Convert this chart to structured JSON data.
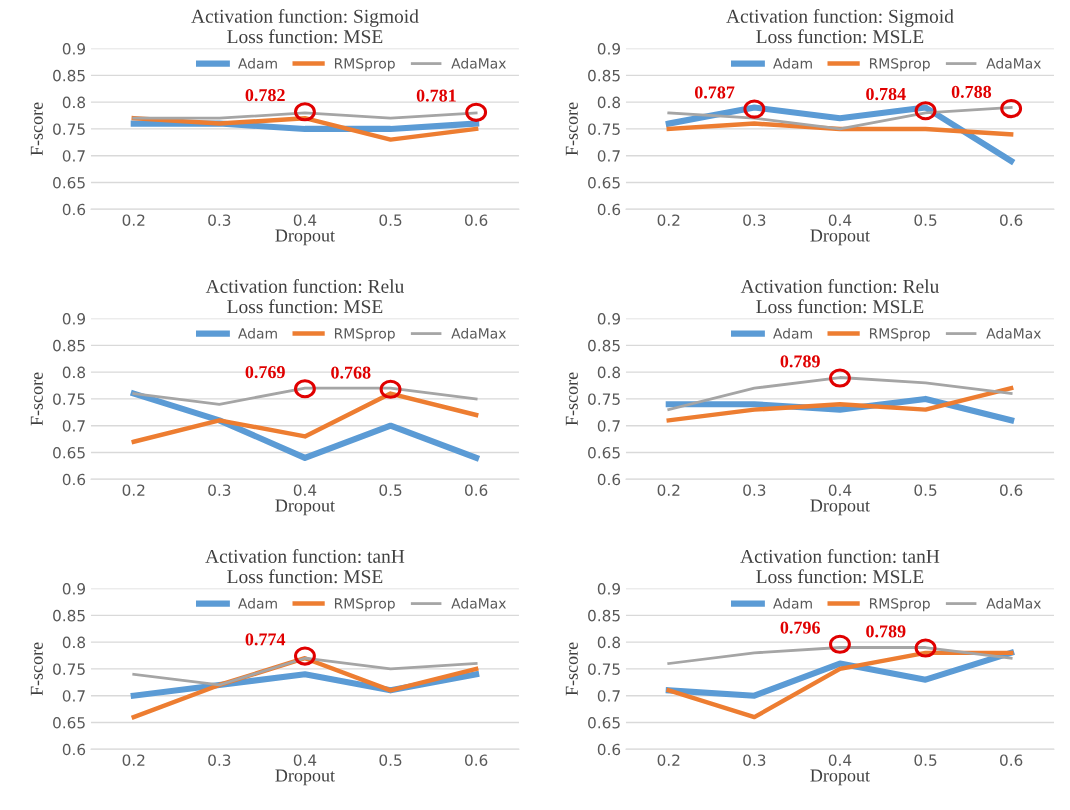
{
  "chart_data": [
    {
      "type": "line",
      "title": "Activation function: Sigmoid\nLoss function: MSE",
      "xlabel": "Dropout",
      "ylabel": "F-score",
      "categories": [
        "0.2",
        "0.3",
        "0.4",
        "0.5",
        "0.6"
      ],
      "ylim": [
        0.6,
        0.9
      ],
      "yticks": [
        0.6,
        0.65,
        0.7,
        0.75,
        0.8,
        0.85,
        0.9
      ],
      "grid": "y",
      "legend": "top right",
      "marker": "none",
      "series": [
        {
          "name": "Adam",
          "color": "#5b9bd5",
          "values": [
            0.76,
            0.76,
            0.75,
            0.75,
            0.76
          ]
        },
        {
          "name": "RMSprop",
          "color": "#ed7d31",
          "values": [
            0.77,
            0.76,
            0.77,
            0.73,
            0.75
          ]
        },
        {
          "name": "AdaMax",
          "color": "#a5a5a5",
          "values": [
            0.77,
            0.77,
            0.78,
            0.77,
            0.78
          ]
        }
      ],
      "annotations": [
        {
          "text": "0.782",
          "x": "0.4",
          "y": 0.782
        },
        {
          "text": "0.781",
          "x": "0.6",
          "y": 0.781
        }
      ]
    },
    {
      "type": "line",
      "title": "Activation function: Sigmoid\nLoss function: MSLE",
      "xlabel": "Dropout",
      "ylabel": "F-score",
      "categories": [
        "0.2",
        "0.3",
        "0.4",
        "0.5",
        "0.6"
      ],
      "ylim": [
        0.6,
        0.9
      ],
      "yticks": [
        0.6,
        0.65,
        0.7,
        0.75,
        0.8,
        0.85,
        0.9
      ],
      "grid": "y",
      "legend": "top right",
      "marker": "none",
      "series": [
        {
          "name": "Adam",
          "color": "#5b9bd5",
          "values": [
            0.76,
            0.79,
            0.77,
            0.79,
            0.69
          ]
        },
        {
          "name": "RMSprop",
          "color": "#ed7d31",
          "values": [
            0.75,
            0.76,
            0.75,
            0.75,
            0.74
          ]
        },
        {
          "name": "AdaMax",
          "color": "#a5a5a5",
          "values": [
            0.78,
            0.77,
            0.75,
            0.78,
            0.79
          ]
        }
      ],
      "annotations": [
        {
          "text": "0.787",
          "x": "0.3",
          "y": 0.787
        },
        {
          "text": "0.784",
          "x": "0.5",
          "y": 0.784
        },
        {
          "text": "0.788",
          "x": "0.6",
          "y": 0.788
        }
      ]
    },
    {
      "type": "line",
      "title": "Activation function: Relu\nLoss function: MSE",
      "xlabel": "Dropout",
      "ylabel": "F-score",
      "categories": [
        "0.2",
        "0.3",
        "0.4",
        "0.5",
        "0.6"
      ],
      "ylim": [
        0.6,
        0.9
      ],
      "yticks": [
        0.6,
        0.65,
        0.7,
        0.75,
        0.8,
        0.85,
        0.9
      ],
      "grid": "y",
      "legend": "top right",
      "marker": "none",
      "series": [
        {
          "name": "Adam",
          "color": "#5b9bd5",
          "values": [
            0.76,
            0.71,
            0.64,
            0.7,
            0.64
          ]
        },
        {
          "name": "RMSprop",
          "color": "#ed7d31",
          "values": [
            0.67,
            0.71,
            0.68,
            0.76,
            0.72
          ]
        },
        {
          "name": "AdaMax",
          "color": "#a5a5a5",
          "values": [
            0.76,
            0.74,
            0.77,
            0.77,
            0.75
          ]
        }
      ],
      "annotations": [
        {
          "text": "0.769",
          "x": "0.4",
          "y": 0.769
        },
        {
          "text": "0.768",
          "x": "0.5",
          "y": 0.768
        }
      ]
    },
    {
      "type": "line",
      "title": "Activation function: Relu\nLoss function: MSLE",
      "xlabel": "Dropout",
      "ylabel": "F-score",
      "categories": [
        "0.2",
        "0.3",
        "0.4",
        "0.5",
        "0.6"
      ],
      "ylim": [
        0.6,
        0.9
      ],
      "yticks": [
        0.6,
        0.65,
        0.7,
        0.75,
        0.8,
        0.85,
        0.9
      ],
      "grid": "y",
      "legend": "top right",
      "marker": "none",
      "series": [
        {
          "name": "Adam",
          "color": "#5b9bd5",
          "values": [
            0.74,
            0.74,
            0.73,
            0.75,
            0.71
          ]
        },
        {
          "name": "RMSprop",
          "color": "#ed7d31",
          "values": [
            0.71,
            0.73,
            0.74,
            0.73,
            0.77
          ]
        },
        {
          "name": "AdaMax",
          "color": "#a5a5a5",
          "values": [
            0.73,
            0.77,
            0.79,
            0.78,
            0.76
          ]
        }
      ],
      "annotations": [
        {
          "text": "0.789",
          "x": "0.4",
          "y": 0.789
        }
      ]
    },
    {
      "type": "line",
      "title": "Activation function: tanH\nLoss function: MSE",
      "xlabel": "Dropout",
      "ylabel": "F-score",
      "categories": [
        "0.2",
        "0.3",
        "0.4",
        "0.5",
        "0.6"
      ],
      "ylim": [
        0.6,
        0.9
      ],
      "yticks": [
        0.6,
        0.65,
        0.7,
        0.75,
        0.8,
        0.85,
        0.9
      ],
      "grid": "y",
      "legend": "top right",
      "marker": "none",
      "series": [
        {
          "name": "Adam",
          "color": "#5b9bd5",
          "values": [
            0.7,
            0.72,
            0.74,
            0.71,
            0.74
          ]
        },
        {
          "name": "RMSprop",
          "color": "#ed7d31",
          "values": [
            0.66,
            0.72,
            0.77,
            0.71,
            0.75
          ]
        },
        {
          "name": "AdaMax",
          "color": "#a5a5a5",
          "values": [
            0.74,
            0.72,
            0.77,
            0.75,
            0.76
          ]
        }
      ],
      "annotations": [
        {
          "text": "0.774",
          "x": "0.4",
          "y": 0.774
        }
      ]
    },
    {
      "type": "line",
      "title": "Activation function: tanH\nLoss function: MSLE",
      "xlabel": "Dropout",
      "ylabel": "F-score",
      "categories": [
        "0.2",
        "0.3",
        "0.4",
        "0.5",
        "0.6"
      ],
      "ylim": [
        0.6,
        0.9
      ],
      "yticks": [
        0.6,
        0.65,
        0.7,
        0.75,
        0.8,
        0.85,
        0.9
      ],
      "grid": "y",
      "legend": "top right",
      "marker": "none",
      "series": [
        {
          "name": "Adam",
          "color": "#5b9bd5",
          "values": [
            0.71,
            0.7,
            0.76,
            0.73,
            0.78
          ]
        },
        {
          "name": "RMSprop",
          "color": "#ed7d31",
          "values": [
            0.71,
            0.66,
            0.75,
            0.78,
            0.78
          ]
        },
        {
          "name": "AdaMax",
          "color": "#a5a5a5",
          "values": [
            0.76,
            0.78,
            0.79,
            0.79,
            0.77
          ]
        }
      ],
      "annotations": [
        {
          "text": "0.796",
          "x": "0.4",
          "y": 0.796
        },
        {
          "text": "0.789",
          "x": "0.5",
          "y": 0.789
        }
      ]
    }
  ]
}
